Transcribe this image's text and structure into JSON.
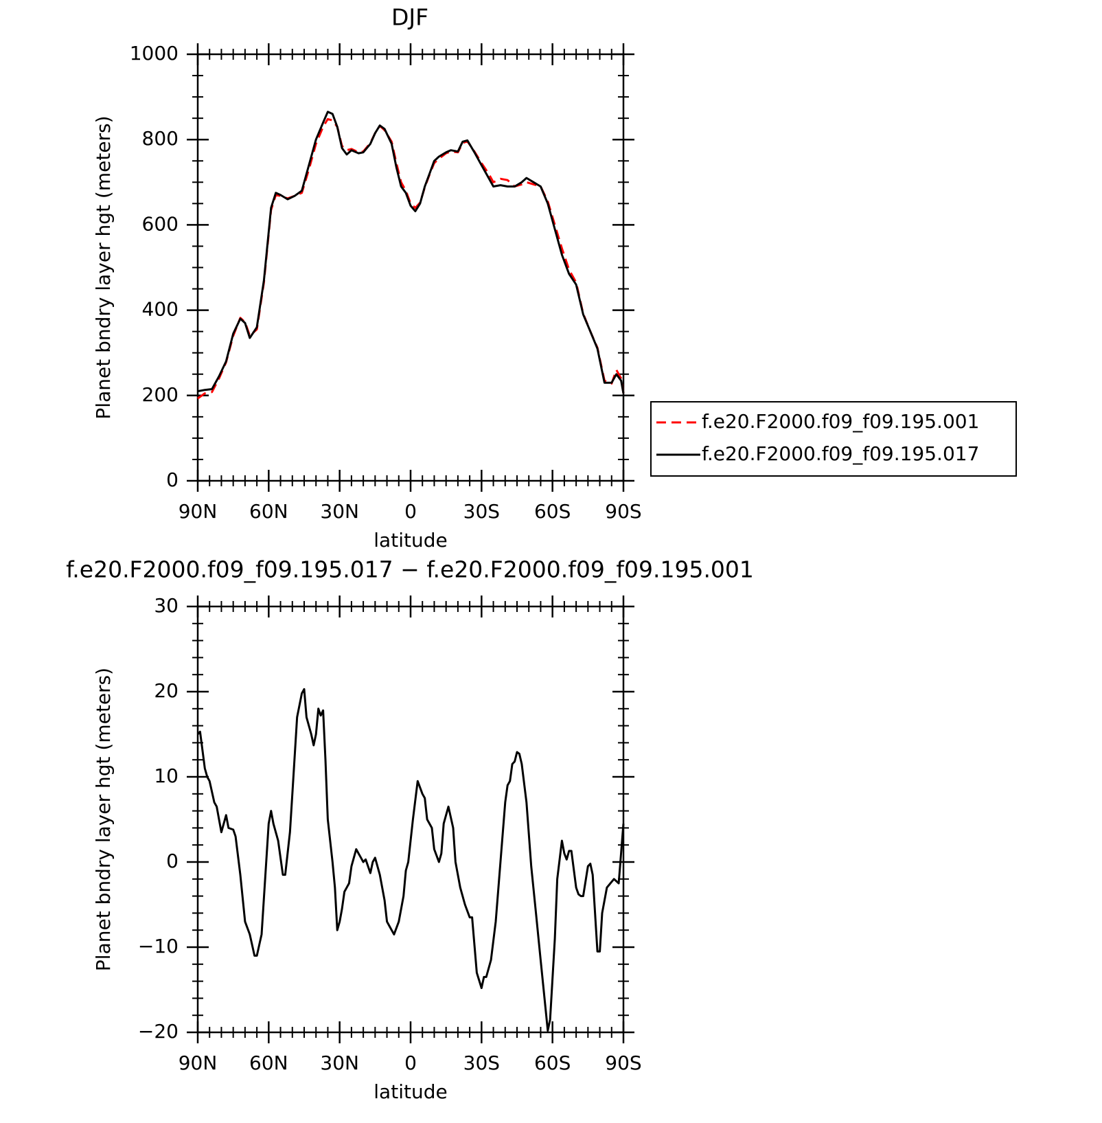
{
  "chart_data": [
    {
      "type": "line",
      "title": "DJF",
      "xlabel": "latitude",
      "ylabel": "Planet bndry layer hgt (meters)",
      "xlim": [
        90,
        -90
      ],
      "xticks": [
        {
          "value": 90,
          "label": "90N"
        },
        {
          "value": 60,
          "label": "60N"
        },
        {
          "value": 30,
          "label": "30N"
        },
        0,
        {
          "value": -30,
          "label": "30S"
        },
        {
          "value": -60,
          "label": "60S"
        },
        {
          "value": -90,
          "label": "90S"
        }
      ],
      "xminorticks": [
        85,
        80,
        75,
        70,
        65,
        55,
        50,
        45,
        40,
        35,
        25,
        20,
        15,
        10,
        5,
        -5,
        -10,
        -15,
        -20,
        -25,
        -35,
        -40,
        -45,
        -50,
        -55,
        -65,
        -70,
        -75,
        -80,
        -85
      ],
      "ylim": [
        0,
        1000
      ],
      "yticks": [
        0,
        200,
        400,
        600,
        800,
        1000
      ],
      "yminorticks": [
        50,
        100,
        150,
        250,
        300,
        350,
        450,
        500,
        550,
        650,
        700,
        750,
        850,
        900,
        950
      ],
      "legend": "right",
      "x": [
        90,
        87,
        84,
        81,
        78,
        75,
        72,
        70,
        68,
        65,
        62,
        59,
        57,
        55,
        52,
        49,
        46,
        43,
        40,
        37,
        35,
        33,
        31,
        29,
        27,
        25,
        22,
        20,
        17,
        15,
        13,
        11,
        8,
        6,
        4,
        2,
        0,
        -2,
        -4,
        -6,
        -8,
        -10,
        -12,
        -15,
        -17,
        -20,
        -22,
        -24,
        -27,
        -30,
        -33,
        -35,
        -38,
        -41,
        -44,
        -47,
        -49,
        -52,
        -55,
        -58,
        -61,
        -64,
        -67,
        -70,
        -73,
        -76,
        -79,
        -82,
        -85,
        -87,
        -89,
        -90
      ],
      "series": [
        {
          "name": "f.e20.F2000.f09_f09.195.001",
          "color": "#ff0000",
          "dashed": true,
          "values": [
            193,
            205,
            208,
            240,
            278,
            340,
            382,
            372,
            340,
            355,
            465,
            635,
            670,
            668,
            662,
            668,
            675,
            730,
            790,
            830,
            848,
            845,
            830,
            785,
            775,
            778,
            770,
            772,
            792,
            815,
            832,
            822,
            795,
            745,
            700,
            680,
            650,
            640,
            652,
            688,
            718,
            745,
            755,
            768,
            772,
            770,
            792,
            796,
            772,
            745,
            720,
            700,
            708,
            705,
            690,
            695,
            700,
            695,
            690,
            655,
            600,
            545,
            495,
            465,
            392,
            350,
            312,
            235,
            228,
            260,
            240,
            205
          ]
        },
        {
          "name": "f.e20.F2000.f09_f09.195.017",
          "color": "#000000",
          "dashed": false,
          "values": [
            210,
            213,
            215,
            245,
            280,
            345,
            380,
            370,
            335,
            360,
            470,
            640,
            675,
            670,
            660,
            668,
            680,
            740,
            800,
            840,
            865,
            860,
            830,
            780,
            765,
            775,
            768,
            770,
            790,
            815,
            833,
            825,
            790,
            735,
            690,
            675,
            645,
            632,
            650,
            690,
            720,
            750,
            760,
            770,
            775,
            772,
            795,
            798,
            770,
            740,
            710,
            690,
            693,
            690,
            690,
            700,
            710,
            700,
            690,
            650,
            590,
            530,
            485,
            460,
            390,
            350,
            310,
            230,
            230,
            250,
            235,
            205
          ]
        }
      ]
    },
    {
      "type": "line",
      "title": "f.e20.F2000.f09_f09.195.017 − f.e20.F2000.f09_f09.195.001",
      "xlabel": "latitude",
      "ylabel": "Planet bndry layer hgt (meters)",
      "xlim": [
        90,
        -90
      ],
      "xticks": [
        {
          "value": 90,
          "label": "90N"
        },
        {
          "value": 60,
          "label": "60N"
        },
        {
          "value": 30,
          "label": "30N"
        },
        0,
        {
          "value": -30,
          "label": "30S"
        },
        {
          "value": -60,
          "label": "60S"
        },
        {
          "value": -90,
          "label": "90S"
        }
      ],
      "xminorticks": [
        85,
        80,
        75,
        70,
        65,
        55,
        50,
        45,
        40,
        35,
        25,
        20,
        15,
        10,
        5,
        -5,
        -10,
        -15,
        -20,
        -25,
        -35,
        -40,
        -45,
        -50,
        -55,
        -65,
        -70,
        -75,
        -80,
        -85
      ],
      "ylim": [
        -20,
        30
      ],
      "yticks": [
        {
          "value": -20,
          "label": "−20"
        },
        {
          "value": -10,
          "label": "−10"
        },
        0,
        10,
        20,
        30
      ],
      "yminorticks": [
        -18,
        -16,
        -14,
        -12,
        -8,
        -6,
        -4,
        -2,
        2,
        4,
        6,
        8,
        12,
        14,
        16,
        18,
        22,
        24,
        26,
        28
      ],
      "x": [
        90,
        89,
        87,
        86,
        85,
        83,
        82,
        80,
        78,
        77,
        75,
        74,
        72,
        70,
        68,
        66,
        65,
        63,
        60,
        59,
        58,
        56,
        54,
        53,
        51,
        50,
        48,
        46,
        45,
        44,
        42,
        41,
        40,
        39,
        38,
        37,
        36,
        35,
        33,
        32,
        31,
        30,
        29,
        28,
        27,
        26,
        25,
        23,
        22,
        21,
        20,
        19,
        17,
        16,
        15,
        13,
        11,
        10,
        9,
        8,
        7,
        5,
        3,
        2,
        1,
        -1,
        -3,
        -5,
        -6,
        -7,
        -9,
        -10,
        -12,
        -13,
        -14,
        -16,
        -18,
        -19,
        -21,
        -23,
        -25,
        -26,
        -28,
        -30,
        -31,
        -32,
        -34,
        -36,
        -38,
        -40,
        -41,
        -42,
        -43,
        -44,
        -45,
        -46,
        -47,
        -49,
        -51,
        -53,
        -55,
        -57,
        -58,
        -59,
        -61,
        -62,
        -64,
        -65,
        -66,
        -67,
        -68,
        -70,
        -71,
        -72,
        -73,
        -75,
        -76,
        -77,
        -79,
        -80,
        -81,
        -83,
        -86,
        -88,
        -90
      ],
      "series": [
        {
          "color": "#000000",
          "dashed": false,
          "values": [
            15,
            15.3,
            11,
            10,
            9.5,
            7,
            6.5,
            3.5,
            5.5,
            4,
            3.8,
            3,
            -1.5,
            -7,
            -8.5,
            -11,
            -11,
            -8.5,
            4.5,
            6,
            4.5,
            2.5,
            -1.5,
            -1.5,
            3.5,
            8,
            17,
            19.8,
            20.3,
            17,
            15,
            13.7,
            15,
            18,
            17.2,
            17.8,
            12,
            5,
            0,
            -3,
            -8,
            -7,
            -5.5,
            -3.5,
            -3,
            -2.5,
            -0.5,
            1.5,
            1,
            0.5,
            0,
            0.3,
            -1.3,
            0,
            0.5,
            -1.5,
            -4.5,
            -7,
            -7.5,
            -8,
            -8.5,
            -7,
            -4,
            -1,
            0,
            5,
            9.5,
            8,
            7.5,
            5,
            4,
            1.5,
            0,
            1,
            4.5,
            6.5,
            4,
            0,
            -3,
            -5,
            -6.5,
            -6.5,
            -13,
            -14.8,
            -13.5,
            -13.5,
            -11.5,
            -7,
            0,
            7,
            9,
            9.5,
            11.5,
            11.8,
            12.9,
            12.7,
            11.5,
            7,
            -0.5,
            -6,
            -11.5,
            -17,
            -19.8,
            -18.5,
            -9,
            -2,
            2.5,
            1,
            0.3,
            1.3,
            1.3,
            -3,
            -3.8,
            -4,
            -4,
            -0.5,
            -0.2,
            -1.5,
            -10.5,
            -10.5,
            -6,
            -3,
            -2,
            -2.5,
            4.5
          ]
        }
      ]
    }
  ]
}
